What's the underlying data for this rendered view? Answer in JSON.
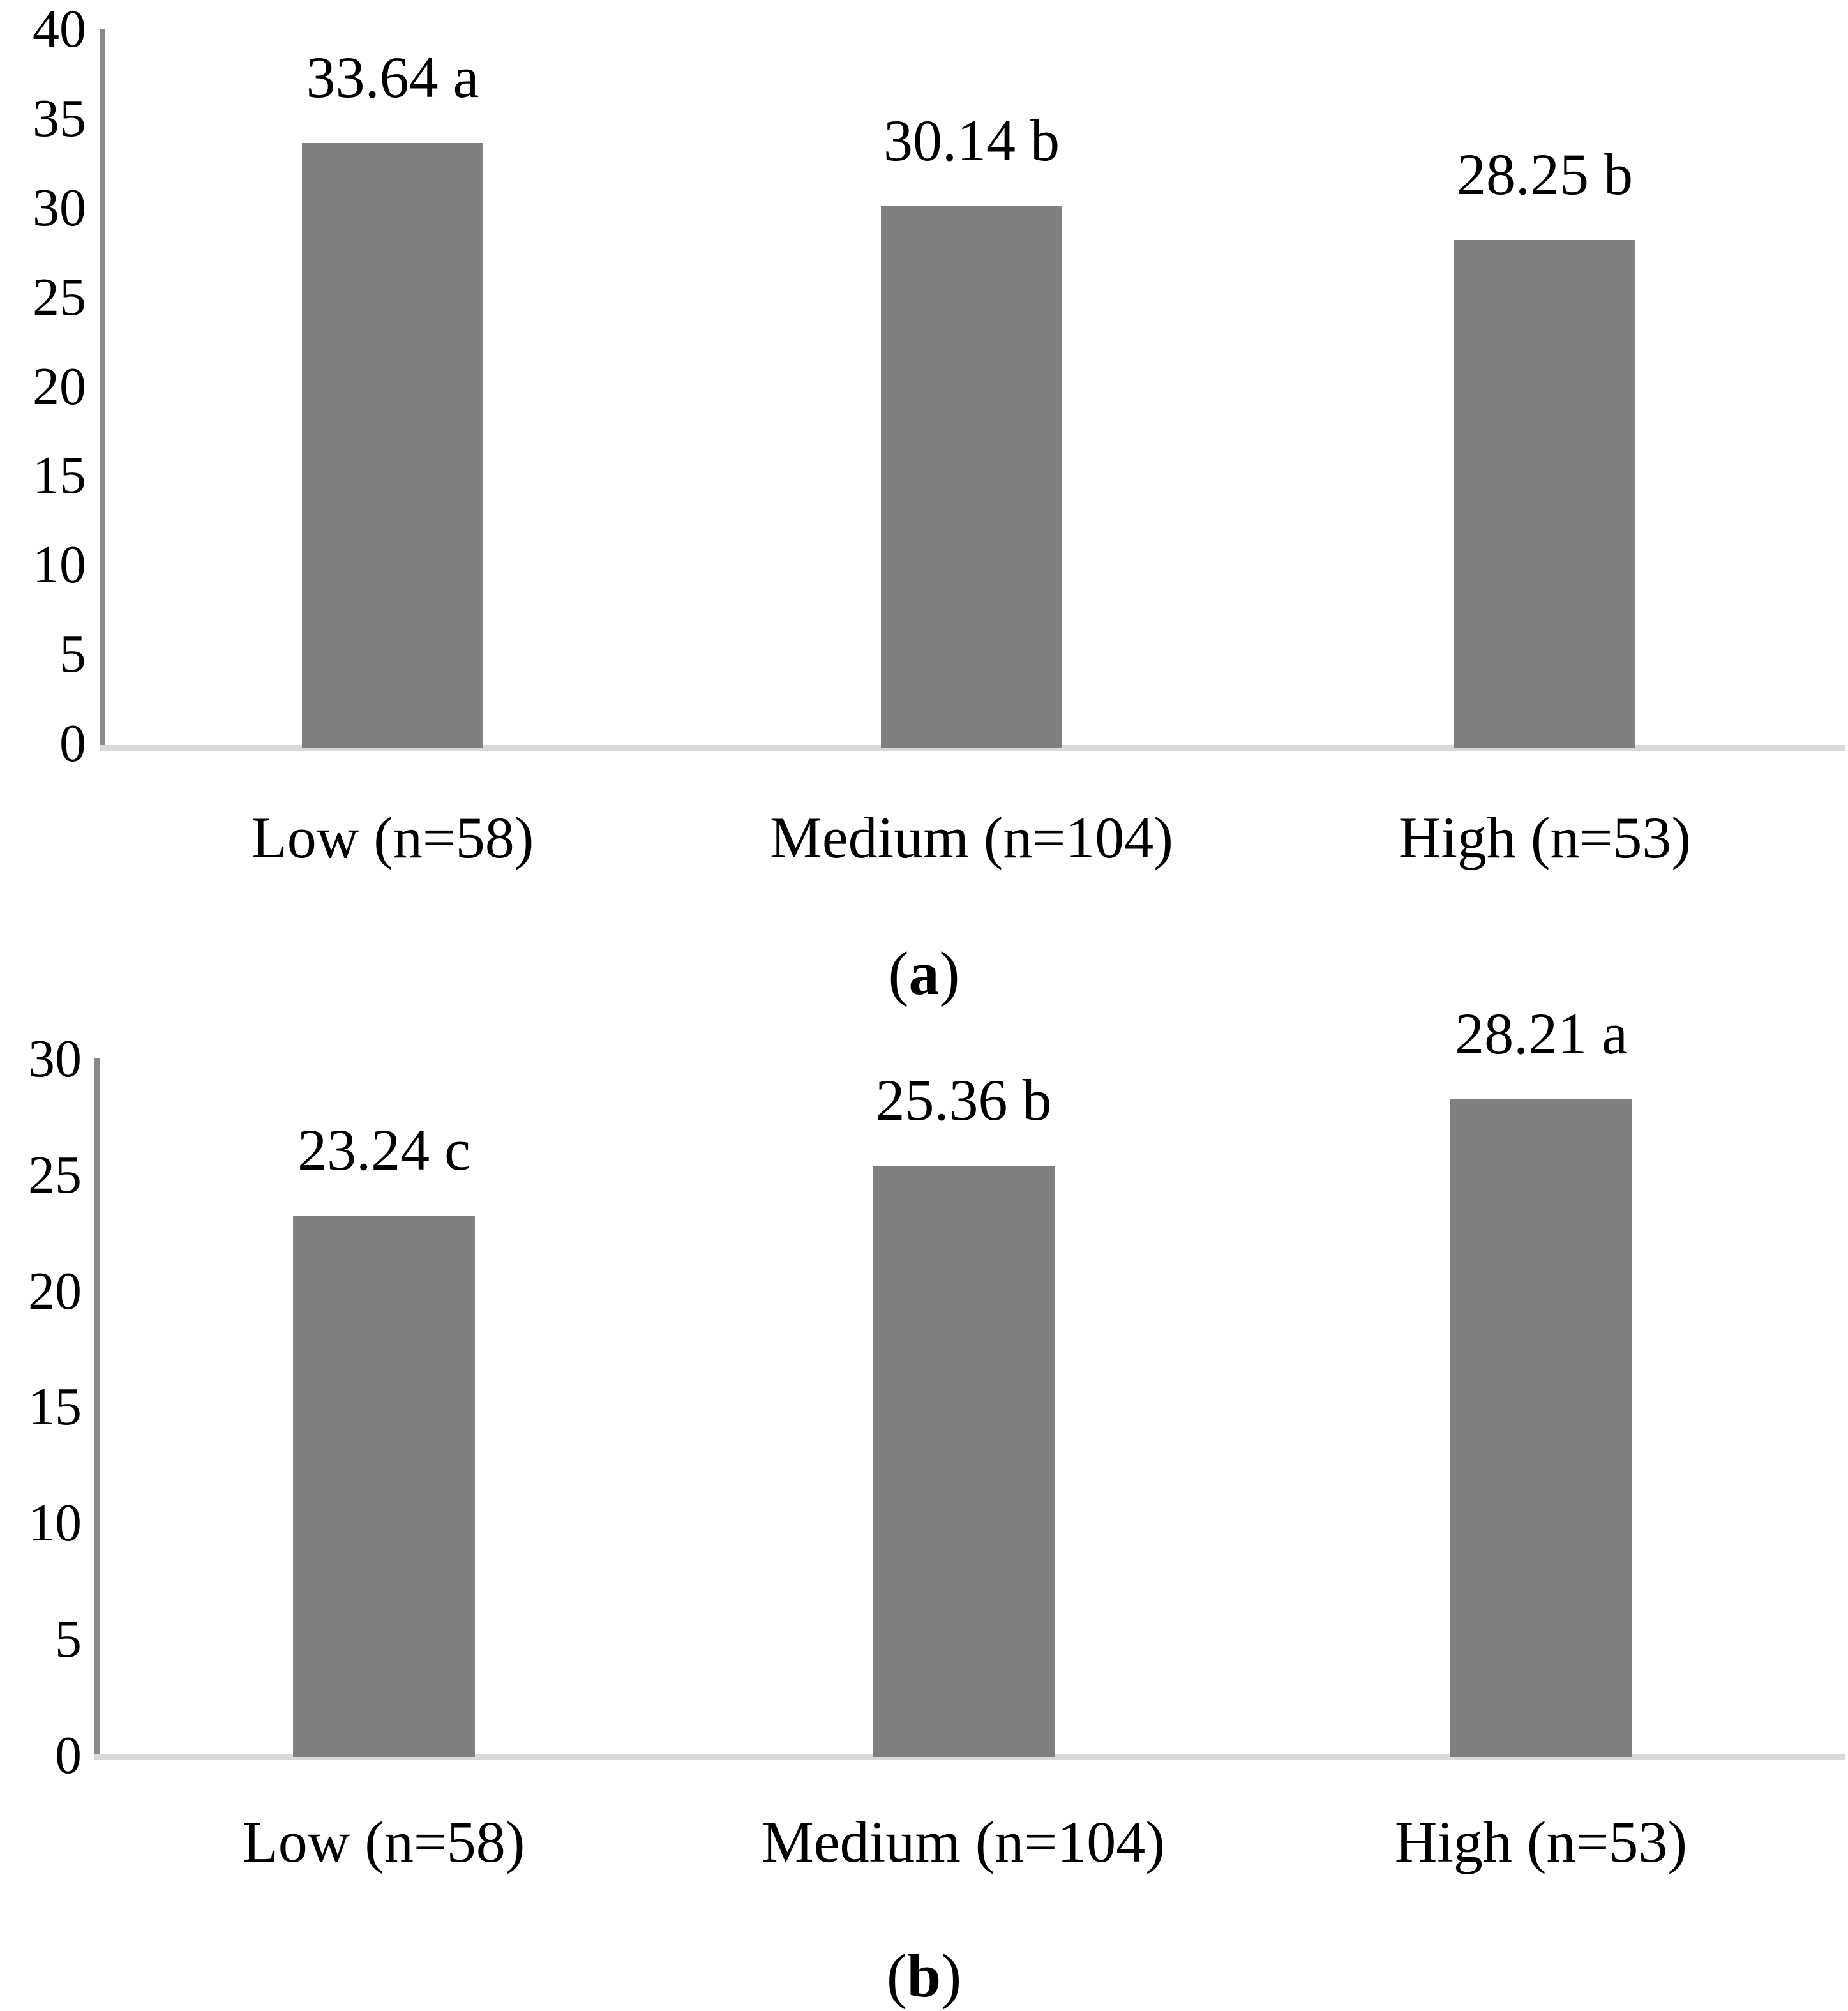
{
  "chart_data": [
    {
      "type": "bar",
      "panel": "a",
      "categories": [
        "Low (n=58)",
        "Medium (n=104)",
        "High (n=53)"
      ],
      "values": [
        33.64,
        30.14,
        28.25
      ],
      "point_labels": [
        "33.64 a",
        "30.14 b",
        "28.25 b"
      ],
      "significance_letters": [
        "a",
        "b",
        "b"
      ],
      "ylim": [
        0,
        40
      ],
      "yticks": [
        "40",
        "35",
        "30",
        "25",
        "20",
        "15",
        "10",
        "5",
        "0"
      ],
      "grid": false,
      "legend": false,
      "bar_color": "#7f7f7f",
      "axis_line_color": "#898989",
      "baseline_color": "#d9d9d9",
      "caption_open": "(",
      "caption_letter": "a",
      "caption_close": ")"
    },
    {
      "type": "bar",
      "panel": "b",
      "categories": [
        "Low (n=58)",
        "Medium (n=104)",
        "High (n=53)"
      ],
      "values": [
        23.24,
        25.36,
        28.21
      ],
      "point_labels": [
        "23.24 c",
        "25.36 b",
        "28.21 a"
      ],
      "significance_letters": [
        "c",
        "b",
        "a"
      ],
      "ylim": [
        0,
        30
      ],
      "yticks": [
        "30",
        "25",
        "20",
        "15",
        "10",
        "5",
        "0"
      ],
      "grid": false,
      "legend": false,
      "bar_color": "#7f7f7f",
      "axis_line_color": "#898989",
      "baseline_color": "#d9d9d9",
      "caption_open": "(",
      "caption_letter": "b",
      "caption_close": ")"
    }
  ]
}
